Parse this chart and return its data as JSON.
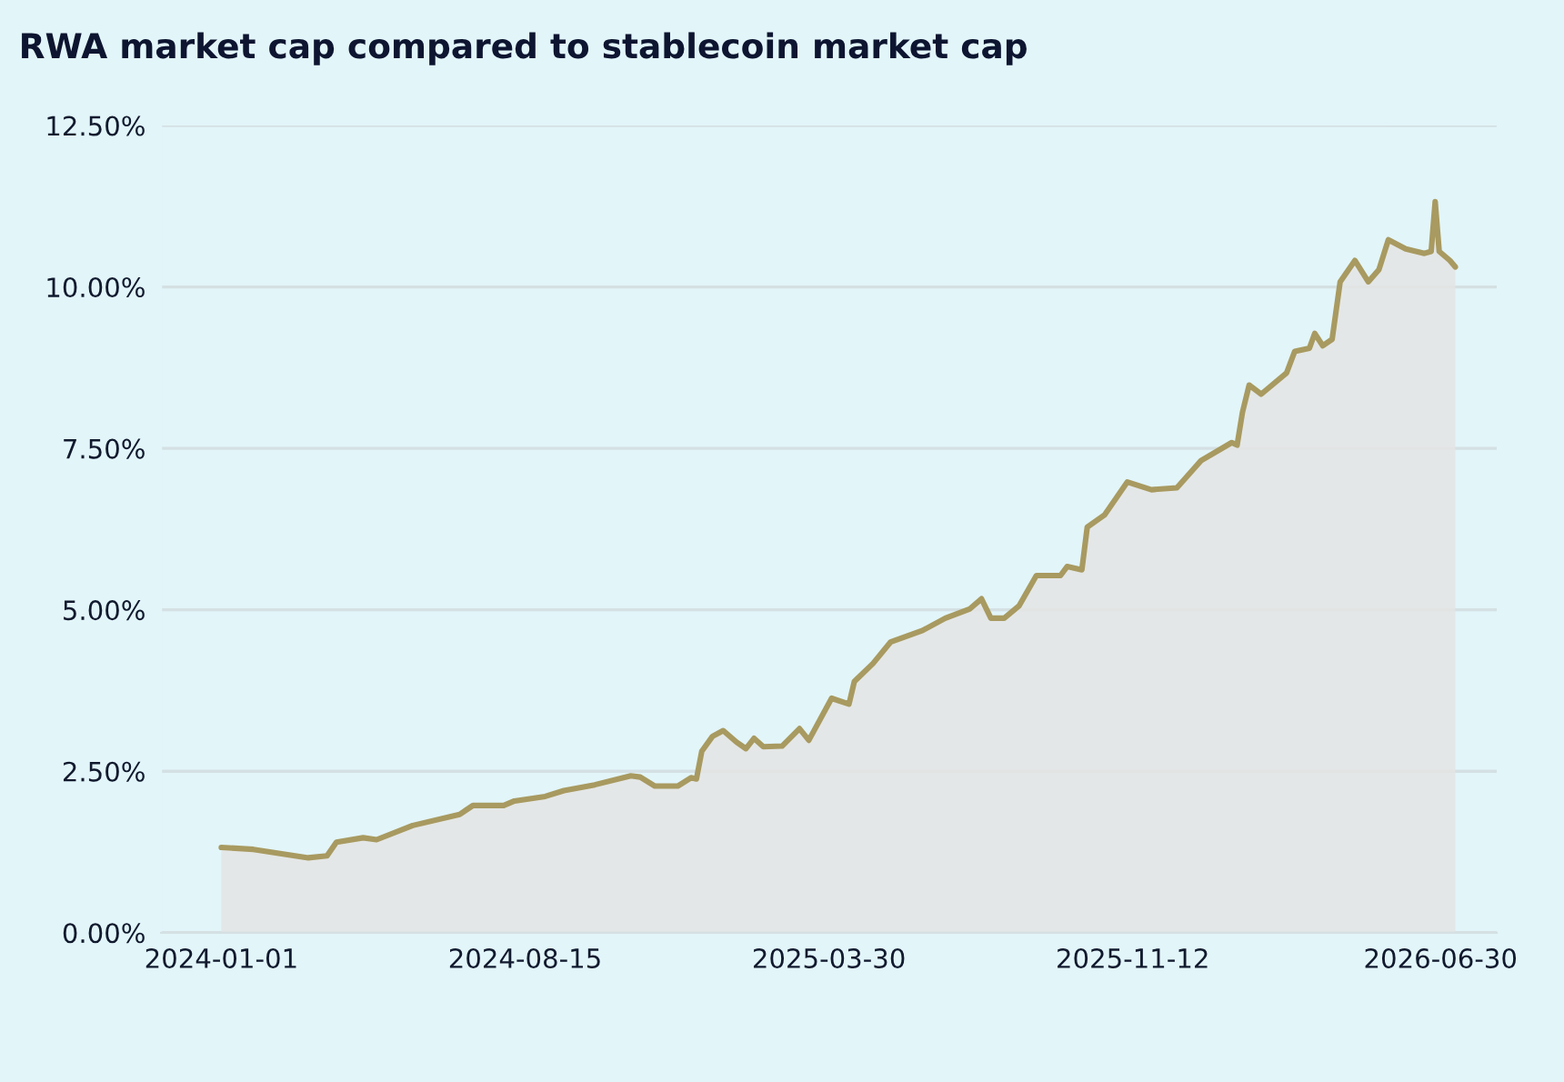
{
  "chart_data": {
    "type": "area",
    "title": "RWA market cap compared to stablecoin market cap",
    "x": [
      "2024-01-01",
      "2024-01-25",
      "2024-03-06",
      "2024-03-20",
      "2024-03-27",
      "2024-04-16",
      "2024-04-26",
      "2024-05-23",
      "2024-06-27",
      "2024-07-07",
      "2024-07-30",
      "2024-08-07",
      "2024-08-30",
      "2024-09-13",
      "2024-10-06",
      "2024-11-02",
      "2024-11-09",
      "2024-11-20",
      "2024-12-07",
      "2024-12-17",
      "2024-12-21",
      "2024-12-25",
      "2025-01-02",
      "2025-01-10",
      "2025-01-20",
      "2025-01-27",
      "2025-02-02",
      "2025-02-09",
      "2025-02-23",
      "2025-03-08",
      "2025-03-15",
      "2025-04-01",
      "2025-04-14",
      "2025-04-18",
      "2025-05-02",
      "2025-05-15",
      "2025-06-08",
      "2025-06-25",
      "2025-07-13",
      "2025-07-22",
      "2025-07-29",
      "2025-08-08",
      "2025-08-19",
      "2025-09-01",
      "2025-09-19",
      "2025-09-24",
      "2025-10-05",
      "2025-10-09",
      "2025-10-22",
      "2025-11-08",
      "2025-11-26",
      "2025-12-15",
      "2026-01-02",
      "2026-01-25",
      "2026-01-29",
      "2026-02-02",
      "2026-02-07",
      "2026-02-16",
      "2026-03-07",
      "2026-03-13",
      "2026-03-24",
      "2026-03-28",
      "2026-04-03",
      "2026-04-10",
      "2026-04-16",
      "2026-04-27",
      "2026-05-07",
      "2026-05-15",
      "2026-05-22",
      "2026-06-04",
      "2026-06-18",
      "2026-06-23",
      "2026-06-26",
      "2026-06-29",
      "2026-07-07",
      "2026-07-11"
    ],
    "series": [
      {
        "color": "#a89a60",
        "values": [
          1.32,
          1.29,
          1.16,
          1.19,
          1.4,
          1.47,
          1.44,
          1.66,
          1.83,
          1.97,
          1.97,
          2.04,
          2.11,
          2.2,
          2.29,
          2.43,
          2.41,
          2.27,
          2.27,
          2.4,
          2.38,
          2.81,
          3.04,
          3.13,
          2.95,
          2.85,
          3.01,
          2.88,
          2.89,
          3.16,
          2.98,
          3.63,
          3.54,
          3.89,
          4.17,
          4.5,
          4.68,
          4.87,
          5.01,
          5.17,
          4.87,
          4.87,
          5.06,
          5.53,
          5.53,
          5.67,
          5.62,
          6.28,
          6.47,
          6.98,
          6.86,
          6.89,
          7.31,
          7.59,
          7.55,
          8.06,
          8.48,
          8.34,
          8.67,
          9.0,
          9.05,
          9.28,
          9.09,
          9.19,
          10.08,
          10.41,
          10.08,
          10.27,
          10.73,
          10.59,
          10.52,
          10.55,
          11.32,
          10.55,
          10.41,
          10.31
        ]
      }
    ],
    "xlim": [
      "2023-11-17",
      "2026-08-11"
    ],
    "xticks": [
      {
        "value": "2024-01-01",
        "label": "2024-01-01"
      },
      {
        "value": "2024-08-15",
        "label": "2024-08-15"
      },
      {
        "value": "2025-03-30",
        "label": "2025-03-30"
      },
      {
        "value": "2025-11-12",
        "label": "2025-11-12"
      },
      {
        "value": "2026-06-30",
        "label": "2026-06-30"
      }
    ],
    "ylim": [
      0,
      12.5
    ],
    "yticks": [
      {
        "value": 0,
        "label": "0.00%"
      },
      {
        "value": 2.5,
        "label": "2.50%"
      },
      {
        "value": 5,
        "label": "5.00%"
      },
      {
        "value": 7.5,
        "label": "7.50%"
      },
      {
        "value": 10,
        "label": "10.00%"
      },
      {
        "value": 12.5,
        "label": "12.50%"
      }
    ],
    "grid": "y",
    "legend": false
  }
}
